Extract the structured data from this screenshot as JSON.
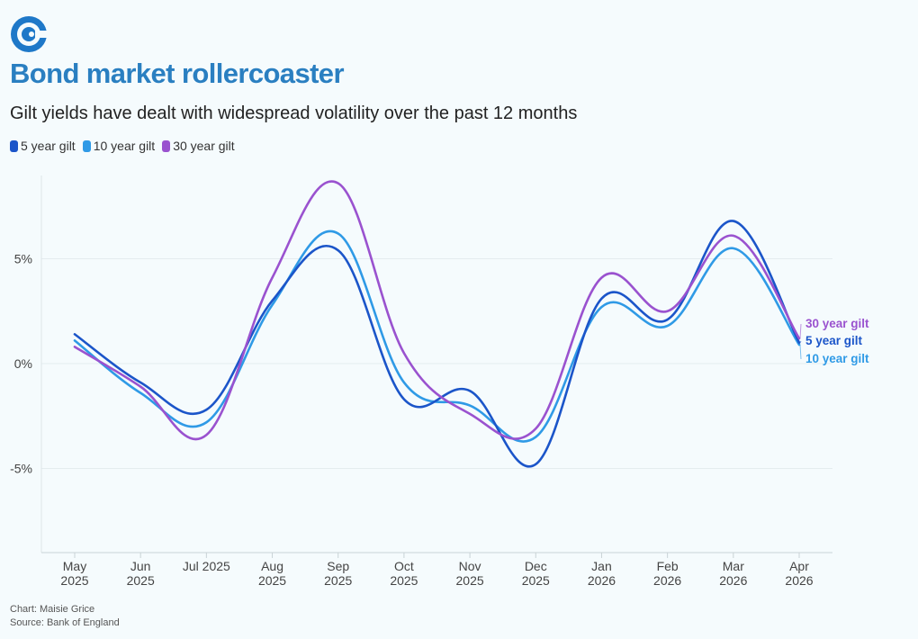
{
  "header": {
    "title": "Bond market rollercoaster",
    "subtitle": "Gilt yields have dealt with widespread volatility over the past 12 months"
  },
  "colors": {
    "title": "#2a7fc1",
    "logo": "#1e78c8",
    "series_5y": "#1b55c9",
    "series_10y": "#2f9ae6",
    "series_30y": "#9a52cf",
    "gridline": "#e4ecef"
  },
  "legend": {
    "items": [
      {
        "label": "5 year gilt",
        "color": "#1b55c9"
      },
      {
        "label": "10 year gilt",
        "color": "#2f9ae6"
      },
      {
        "label": "30 year gilt",
        "color": "#9a52cf"
      }
    ]
  },
  "chart_data": {
    "type": "line",
    "x": [
      "May 2025",
      "Jun 2025",
      "Jul 2025",
      "Aug 2025",
      "Sep 2025",
      "Oct 2025",
      "Nov 2025",
      "Dec 2025",
      "Jan 2026",
      "Feb 2026",
      "Mar 2026",
      "Apr 2026"
    ],
    "x_tick_labels": [
      [
        "May",
        "2025"
      ],
      [
        "Jun",
        "2025"
      ],
      [
        "Jul 2025"
      ],
      [
        "Aug",
        "2025"
      ],
      [
        "Sep",
        "2025"
      ],
      [
        "Oct",
        "2025"
      ],
      [
        "Nov",
        "2025"
      ],
      [
        "Dec",
        "2025"
      ],
      [
        "Jan",
        "2026"
      ],
      [
        "Feb",
        "2026"
      ],
      [
        "Mar",
        "2026"
      ],
      [
        "Apr",
        "2026"
      ]
    ],
    "y_ticks": [
      {
        "value": 5,
        "label": "5%"
      },
      {
        "value": 0,
        "label": "0%"
      },
      {
        "value": -5,
        "label": "-5%"
      }
    ],
    "ylim": [
      -9,
      9
    ],
    "grid": true,
    "series": [
      {
        "name": "5 year gilt",
        "color": "#1b55c9",
        "values": [
          1.4,
          -0.9,
          -2.2,
          3.0,
          5.4,
          -1.7,
          -1.3,
          -4.8,
          3.1,
          2.1,
          6.8,
          1.0
        ]
      },
      {
        "name": "10 year gilt",
        "color": "#2f9ae6",
        "values": [
          1.1,
          -1.4,
          -2.8,
          2.8,
          6.2,
          -0.9,
          -2.0,
          -3.5,
          2.7,
          1.8,
          5.5,
          0.9
        ]
      },
      {
        "name": "30 year gilt",
        "color": "#9a52cf",
        "values": [
          0.8,
          -1.1,
          -3.4,
          4.1,
          8.6,
          0.5,
          -2.4,
          -3.1,
          4.1,
          2.5,
          6.1,
          1.2
        ]
      }
    ],
    "end_labels": [
      "30 year gilt",
      "5 year gilt",
      "10 year gilt"
    ]
  },
  "footer": {
    "credit": "Chart: Maisie Grice",
    "source": "Source: Bank of England"
  }
}
